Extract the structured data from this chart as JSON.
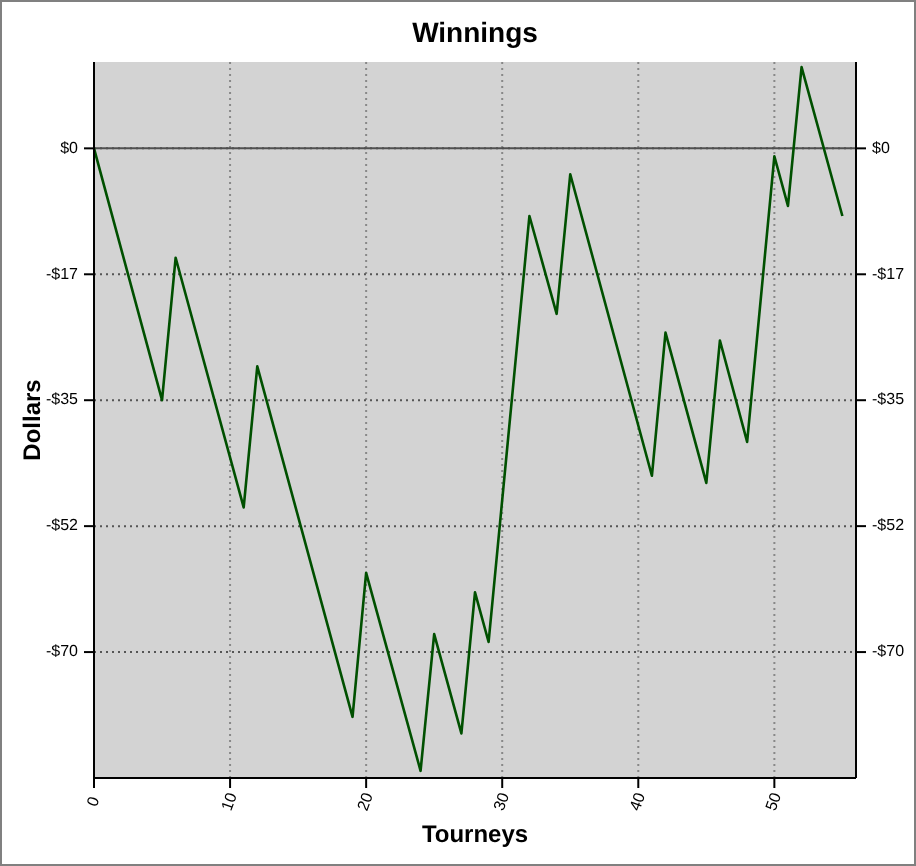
{
  "chart_data": {
    "type": "line",
    "title": "Winnings",
    "xlabel": "Tourneys",
    "ylabel": "Dollars",
    "x": [
      0,
      5,
      6,
      11,
      12,
      19,
      20,
      24,
      25,
      27,
      28,
      29,
      32,
      34,
      35,
      41,
      42,
      45,
      46,
      48,
      50,
      51,
      52,
      55
    ],
    "series": [
      {
        "color": "#005000",
        "values": [
          0,
          -35,
          -15.2,
          -49.9,
          -30.3,
          -79,
          -59,
          -86.5,
          -67.5,
          -81.3,
          -61.7,
          -68.6,
          -9.4,
          -23,
          -3.6,
          -45.5,
          -25.6,
          -46.5,
          -26.7,
          -40.8,
          -1.1,
          -8,
          11.3,
          -9.4
        ]
      }
    ],
    "xlim": [
      0,
      56
    ],
    "xticks": [
      0,
      10,
      20,
      30,
      40,
      50
    ],
    "ylim": [
      -87.5,
      12
    ],
    "yticks": [
      {
        "value": 0,
        "label": "$0"
      },
      {
        "value": -17.5,
        "label": "-$17"
      },
      {
        "value": -35,
        "label": "-$35"
      },
      {
        "value": -52.5,
        "label": "-$52"
      },
      {
        "value": -70,
        "label": "-$70"
      }
    ],
    "y2lim": [
      -87.5,
      12
    ],
    "y2ticks": [
      {
        "value": 0,
        "label": "$0"
      },
      {
        "value": -17.5,
        "label": "-$17"
      },
      {
        "value": -35,
        "label": "-$35"
      },
      {
        "value": -52.5,
        "label": "-$52"
      },
      {
        "value": -70,
        "label": "-$70"
      }
    ],
    "ref_lines": [
      {
        "axis": "y",
        "value": 0,
        "color": "#505050"
      }
    ],
    "grid": true,
    "line_style": "solid",
    "marker": "none"
  }
}
